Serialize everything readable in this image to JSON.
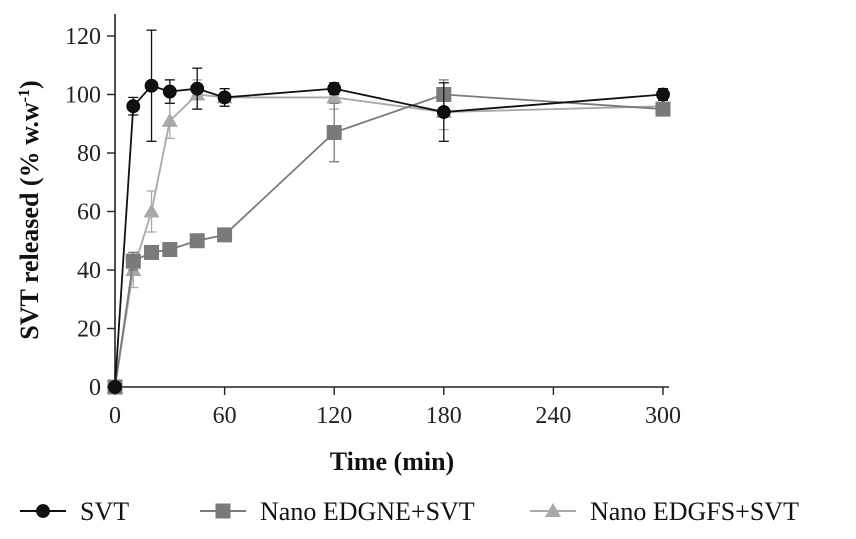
{
  "chart_data": {
    "type": "line",
    "title": "",
    "xlabel": "Time (min)",
    "ylabel_main": "SVT released (% w.w",
    "ylabel_sup": "-1",
    "ylabel_close": ")",
    "xlim": [
      0,
      300
    ],
    "ylim": [
      0,
      120
    ],
    "x_ticks": [
      0,
      60,
      120,
      180,
      240,
      300
    ],
    "x_tick_labels": [
      "0",
      "60",
      "120",
      "180",
      "240",
      "300"
    ],
    "y_ticks": [
      0,
      20,
      40,
      60,
      80,
      100,
      120
    ],
    "y_tick_labels": [
      "0",
      "20",
      "40",
      "60",
      "80",
      "100",
      "120"
    ],
    "grid": false,
    "legend_position": "bottom",
    "series": [
      {
        "name": "SVT",
        "marker": "circle",
        "color": "#111111",
        "x": [
          0,
          10,
          20,
          30,
          45,
          60,
          120,
          180,
          300
        ],
        "y": [
          0,
          96,
          103,
          101,
          102,
          99,
          102,
          94,
          100
        ],
        "err": [
          0,
          3,
          19,
          4,
          7,
          3,
          2,
          10,
          2
        ]
      },
      {
        "name": "Nano EDGNE+SVT",
        "marker": "square",
        "color": "#7a7a7a",
        "x": [
          0,
          10,
          20,
          30,
          45,
          60,
          120,
          180,
          300
        ],
        "y": [
          0,
          43,
          46,
          47,
          50,
          52,
          87,
          100,
          95
        ],
        "err": [
          0,
          3,
          2,
          2,
          2,
          2,
          10,
          5,
          2
        ]
      },
      {
        "name": "Nano EDGFS+SVT",
        "marker": "triangle",
        "color": "#a9a9a9",
        "x": [
          0,
          10,
          20,
          30,
          45,
          60,
          120,
          180,
          300
        ],
        "y": [
          0,
          40,
          60,
          91,
          100,
          99,
          99,
          94,
          96
        ],
        "err": [
          0,
          6,
          7,
          6,
          5,
          3,
          4,
          6,
          2
        ]
      }
    ]
  }
}
